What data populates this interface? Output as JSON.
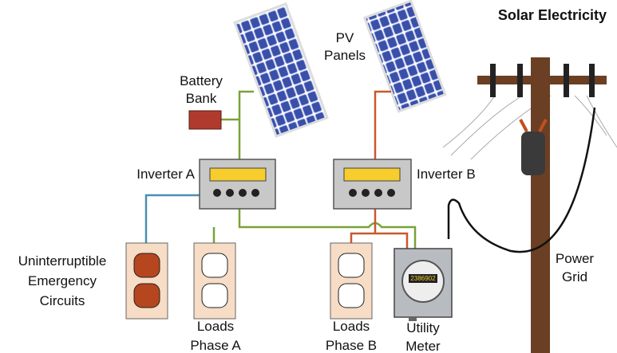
{
  "title": "Solar Electricity",
  "labels": {
    "pv_panels": [
      "PV",
      "Panels"
    ],
    "battery_bank": [
      "Battery",
      "Bank"
    ],
    "inverter_a": "Inverter A",
    "inverter_b": "Inverter B",
    "emergency": [
      "Uninterruptible",
      "Emergency",
      "Circuits"
    ],
    "loads_a": [
      "Loads",
      "Phase A"
    ],
    "loads_b": [
      "Loads",
      "Phase B"
    ],
    "meter": [
      "Utility",
      "Meter"
    ],
    "grid": [
      "Power",
      "Grid"
    ]
  },
  "meter_reading": "2386902"
}
